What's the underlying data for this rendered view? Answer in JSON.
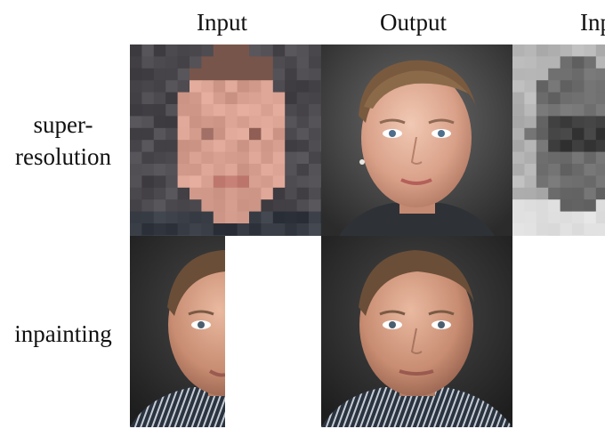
{
  "columns": {
    "input": "Input",
    "output": "Output",
    "input_cut": "Inp"
  },
  "rows": {
    "super_resolution_line1": "super-",
    "super_resolution_line2": "resolution",
    "inpainting": "inpainting"
  },
  "images": [
    {
      "role": "input",
      "task": "super-resolution",
      "content": "pixelated low-resolution face"
    },
    {
      "role": "output",
      "task": "super-resolution",
      "content": "reconstructed face portrait"
    },
    {
      "role": "input",
      "task": "super-resolution (second example, cropped)",
      "content": "pixelated grayscale face"
    },
    {
      "role": "input",
      "task": "inpainting",
      "content": "face with right half masked white"
    },
    {
      "role": "output",
      "task": "inpainting",
      "content": "completed face portrait"
    }
  ],
  "colors": {
    "background": "#ffffff",
    "text": "#111111"
  }
}
